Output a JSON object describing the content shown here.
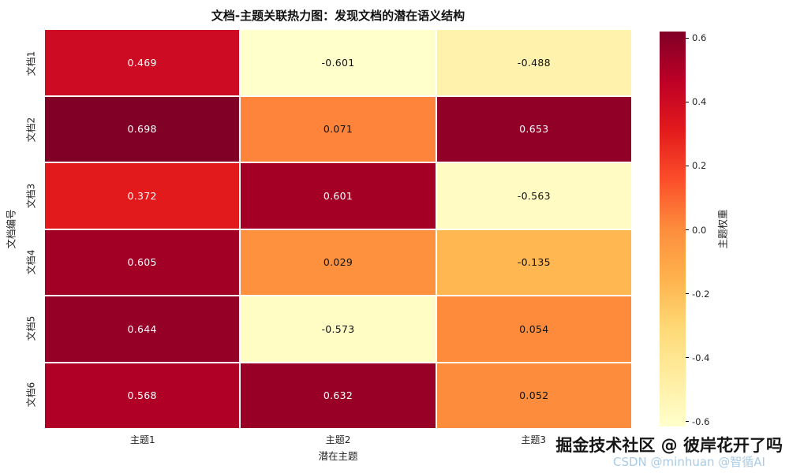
{
  "watermarks": {
    "primary": "掘金技术社区 @ 彼岸花开了吗",
    "secondary": "CSDN @minhuan @智循AI"
  },
  "chart_data": {
    "type": "heatmap",
    "title": "文档-主题关联热力图：发现文档的潜在语义结构",
    "xlabel": "潜在主题",
    "ylabel": "文档编号",
    "x_categories": [
      "主题1",
      "主题2",
      "主题3"
    ],
    "y_categories": [
      "文档1",
      "文档2",
      "文档3",
      "文档4",
      "文档5",
      "文档6"
    ],
    "values": [
      [
        0.469,
        -0.601,
        -0.488
      ],
      [
        0.698,
        0.071,
        0.653
      ],
      [
        0.372,
        0.601,
        -0.563
      ],
      [
        0.605,
        0.029,
        -0.135
      ],
      [
        0.644,
        -0.573,
        0.054
      ],
      [
        0.568,
        0.632,
        0.052
      ]
    ],
    "vmin": -0.601,
    "vmax": 0.698,
    "colormap": "YlOrRd",
    "colormap_stops": [
      "#ffffcc",
      "#ffeda0",
      "#fed976",
      "#feb24c",
      "#fd8d3c",
      "#fc4e2a",
      "#e31a1c",
      "#bd0026",
      "#800026"
    ],
    "value_format_decimals": 3,
    "grid": false,
    "legend_position": "right-colorbar",
    "colorbar": {
      "label": "主题权重",
      "ticks": [
        0.6,
        0.4,
        0.2,
        0.0,
        -0.2,
        -0.4,
        -0.6
      ],
      "range": [
        -0.615,
        0.62
      ]
    }
  }
}
